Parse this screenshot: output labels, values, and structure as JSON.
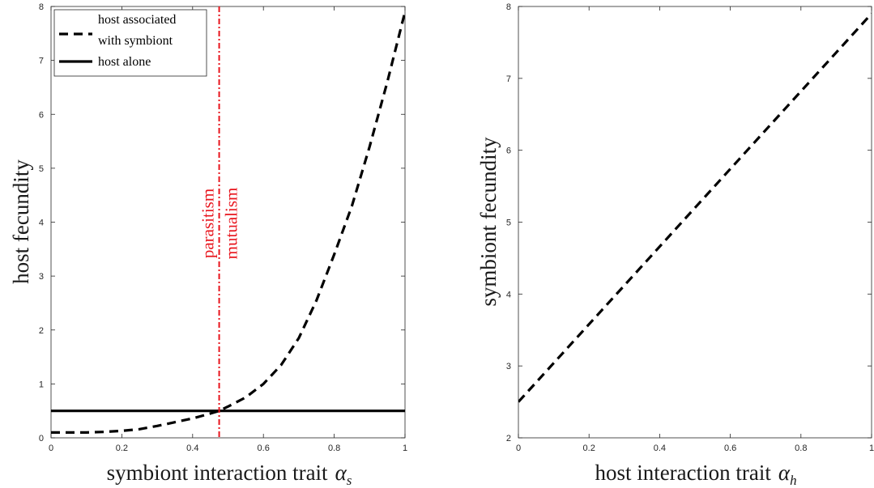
{
  "chart_data": [
    {
      "type": "line",
      "title": "",
      "xlabel": "symbiont interaction trait",
      "xlabel_symbol": "α",
      "xlabel_subscript": "s",
      "ylabel": "host fecundity",
      "xlim": [
        0,
        1
      ],
      "ylim": [
        0,
        8
      ],
      "xticks": [
        0,
        0.2,
        0.4,
        0.6,
        0.8,
        1
      ],
      "xtick_labels": [
        "0",
        "0.2",
        "0.4",
        "0.6",
        "0.8",
        "1"
      ],
      "yticks": [
        0,
        1,
        2,
        3,
        4,
        5,
        6,
        7,
        8
      ],
      "ytick_labels": [
        "0",
        "1",
        "2",
        "3",
        "4",
        "5",
        "6",
        "7",
        "8"
      ],
      "grid": false,
      "legend_position": "top-left",
      "series": [
        {
          "name": "host associated with symbiont",
          "legend_lines": [
            "host associated",
            "with symbiont"
          ],
          "style": "dashed",
          "color": "#000000",
          "x": [
            0,
            0.05,
            0.1,
            0.15,
            0.2,
            0.25,
            0.3,
            0.35,
            0.4,
            0.45,
            0.475,
            0.5,
            0.55,
            0.6,
            0.65,
            0.7,
            0.75,
            0.8,
            0.85,
            0.9,
            0.95,
            1
          ],
          "y": [
            0.1,
            0.1,
            0.1,
            0.11,
            0.13,
            0.16,
            0.22,
            0.29,
            0.36,
            0.45,
            0.5,
            0.58,
            0.75,
            1.0,
            1.35,
            1.85,
            2.55,
            3.4,
            4.3,
            5.4,
            6.6,
            7.9
          ]
        },
        {
          "name": "host alone",
          "legend_lines": [
            "host alone"
          ],
          "style": "solid",
          "color": "#000000",
          "x": [
            0,
            1
          ],
          "y": [
            0.5,
            0.5
          ]
        }
      ],
      "vertical_line": {
        "x": 0.475,
        "style": "dash-dot",
        "color": "#e8141c"
      },
      "annotations": [
        "parasitism",
        "mutualism"
      ]
    },
    {
      "type": "line",
      "title": "",
      "xlabel": "host interaction trait",
      "xlabel_symbol": "α",
      "xlabel_subscript": "h",
      "ylabel": "symbiont fecundity",
      "xlim": [
        0,
        1
      ],
      "ylim": [
        2,
        8
      ],
      "xticks": [
        0,
        0.2,
        0.4,
        0.6,
        0.8,
        1
      ],
      "xtick_labels": [
        "0",
        "0.2",
        "0.4",
        "0.6",
        "0.8",
        "1"
      ],
      "yticks": [
        2,
        3,
        4,
        5,
        6,
        7,
        8
      ],
      "ytick_labels": [
        "2",
        "3",
        "4",
        "5",
        "6",
        "7",
        "8"
      ],
      "grid": false,
      "series": [
        {
          "style": "dashed",
          "color": "#000000",
          "x": [
            0,
            1
          ],
          "y": [
            2.5,
            7.9
          ]
        }
      ]
    }
  ]
}
